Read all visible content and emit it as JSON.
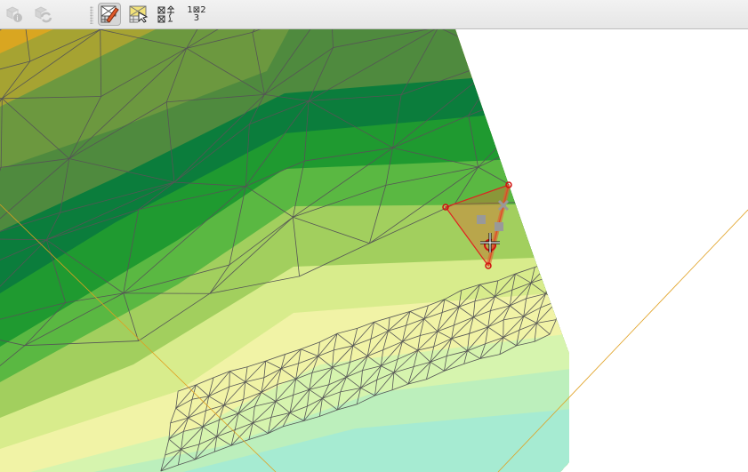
{
  "toolbar": {
    "buttons": [
      {
        "icon": "identify-mesh-icon",
        "enabled": false
      },
      {
        "icon": "reload-mesh-icon",
        "enabled": false
      },
      {
        "icon": "digitize-mesh-icon",
        "active": true
      },
      {
        "icon": "select-mesh-elements-icon",
        "active": false
      },
      {
        "icon": "transform-mesh-vertices-icon",
        "active": false
      },
      {
        "icon": "reindex-mesh-icon",
        "label_top": "1",
        "label_mid": "2",
        "label_bottom": "3"
      }
    ]
  },
  "map": {
    "band_colors": [
      "#d9a621",
      "#a6a332",
      "#6c983f",
      "#4f8a3e",
      "#0b7d3c",
      "#1f9a30",
      "#5ab842",
      "#a2cf5e",
      "#d8ec8c",
      "#f1f3a6",
      "#d6f4ae",
      "#bcefbc",
      "#a6ebd2"
    ],
    "mesh_line_color": "#555555",
    "selection_color": "#e02020",
    "guide_line_color": "#e0a020"
  }
}
